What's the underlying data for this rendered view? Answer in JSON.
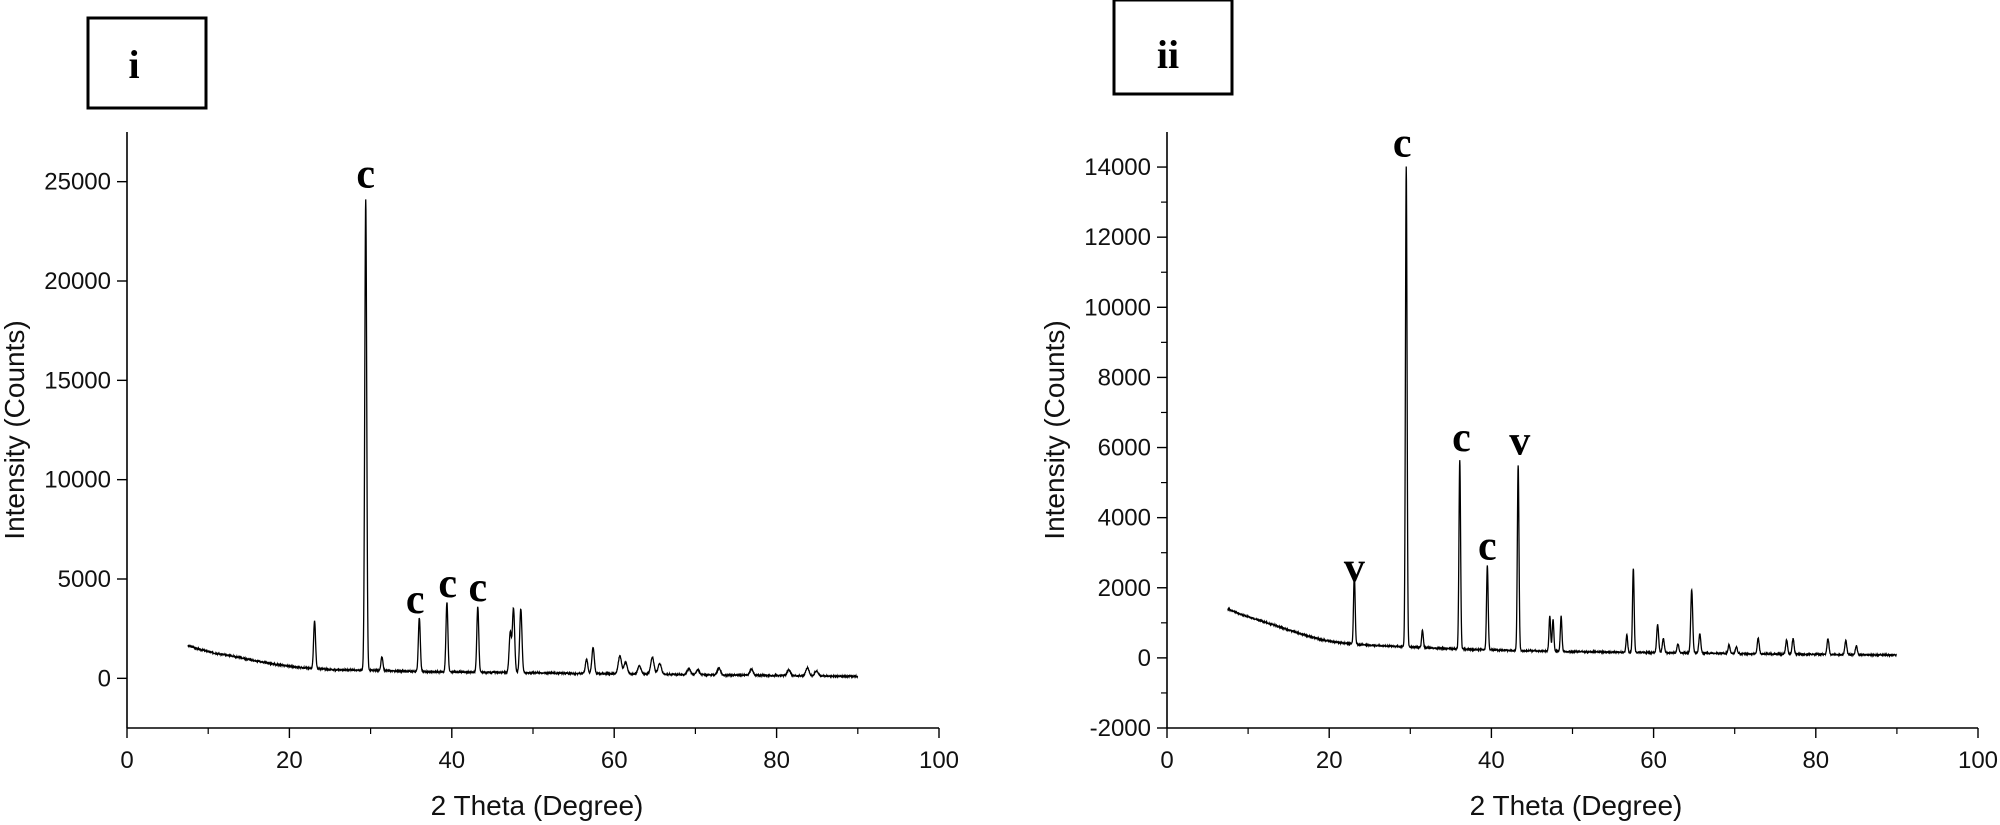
{
  "chart_data": [
    {
      "type": "line",
      "panel_label": "i",
      "xlabel": "2 Theta (Degree)",
      "ylabel": "Intensity (Counts)",
      "xlim": [
        0,
        100
      ],
      "ylim": [
        -2500,
        27500
      ],
      "xticks": [
        0,
        20,
        40,
        60,
        80,
        100
      ],
      "yticks": [
        0,
        5000,
        10000,
        15000,
        20000,
        25000
      ],
      "grid": false,
      "baseline": [
        [
          7.5,
          1650
        ],
        [
          9,
          1450
        ],
        [
          11,
          1250
        ],
        [
          13,
          1120
        ],
        [
          15,
          950
        ],
        [
          18,
          720
        ],
        [
          21,
          560
        ],
        [
          24,
          470
        ],
        [
          26,
          420
        ],
        [
          28,
          420
        ],
        [
          30,
          420
        ],
        [
          32,
          380
        ],
        [
          34,
          360
        ],
        [
          36,
          340
        ],
        [
          38,
          330
        ],
        [
          40,
          320
        ],
        [
          44,
          300
        ],
        [
          47,
          300
        ],
        [
          50,
          280
        ],
        [
          55,
          250
        ],
        [
          60,
          230
        ],
        [
          65,
          210
        ],
        [
          70,
          180
        ],
        [
          75,
          160
        ],
        [
          80,
          140
        ],
        [
          85,
          120
        ],
        [
          90,
          100
        ]
      ],
      "peaks": [
        {
          "x": 23.1,
          "y": 2400,
          "w": 0.12
        },
        {
          "x": 29.4,
          "y": 23700,
          "w": 0.12
        },
        {
          "x": 31.4,
          "y": 700,
          "w": 0.12
        },
        {
          "x": 36.0,
          "y": 2700,
          "w": 0.12
        },
        {
          "x": 39.4,
          "y": 3500,
          "w": 0.12
        },
        {
          "x": 43.2,
          "y": 3300,
          "w": 0.12
        },
        {
          "x": 47.2,
          "y": 2000,
          "w": 0.14
        },
        {
          "x": 47.6,
          "y": 3200,
          "w": 0.14
        },
        {
          "x": 48.5,
          "y": 3200,
          "w": 0.14
        },
        {
          "x": 56.6,
          "y": 700,
          "w": 0.15
        },
        {
          "x": 57.4,
          "y": 1300,
          "w": 0.15
        },
        {
          "x": 60.7,
          "y": 900,
          "w": 0.2
        },
        {
          "x": 61.4,
          "y": 600,
          "w": 0.2
        },
        {
          "x": 63.1,
          "y": 400,
          "w": 0.2
        },
        {
          "x": 64.7,
          "y": 850,
          "w": 0.2
        },
        {
          "x": 65.6,
          "y": 550,
          "w": 0.2
        },
        {
          "x": 69.2,
          "y": 300,
          "w": 0.2
        },
        {
          "x": 70.3,
          "y": 250,
          "w": 0.2
        },
        {
          "x": 72.9,
          "y": 350,
          "w": 0.2
        },
        {
          "x": 76.9,
          "y": 300,
          "w": 0.2
        },
        {
          "x": 81.5,
          "y": 300,
          "w": 0.2
        },
        {
          "x": 83.8,
          "y": 400,
          "w": 0.2
        },
        {
          "x": 84.9,
          "y": 250,
          "w": 0.2
        }
      ],
      "annotations": [
        {
          "text": "c",
          "x": 29.4,
          "y": 24700
        },
        {
          "text": "c",
          "x": 35.5,
          "y": 3300
        },
        {
          "text": "c",
          "x": 39.5,
          "y": 4100
        },
        {
          "text": "c",
          "x": 43.2,
          "y": 3900
        }
      ]
    },
    {
      "type": "line",
      "panel_label": "ii",
      "xlabel": "2 Theta (Degree)",
      "ylabel": "Intensity (Counts)",
      "xlim": [
        0,
        100
      ],
      "ylim": [
        -2000,
        15000
      ],
      "xticks": [
        0,
        20,
        40,
        60,
        80,
        100
      ],
      "yticks": [
        -2000,
        0,
        2000,
        4000,
        6000,
        8000,
        10000,
        12000,
        14000
      ],
      "grid": false,
      "baseline": [
        [
          7.5,
          1400
        ],
        [
          9,
          1250
        ],
        [
          11,
          1100
        ],
        [
          13,
          950
        ],
        [
          15,
          800
        ],
        [
          17,
          650
        ],
        [
          19,
          520
        ],
        [
          21,
          440
        ],
        [
          23,
          390
        ],
        [
          25,
          360
        ],
        [
          27,
          340
        ],
        [
          29,
          320
        ],
        [
          31,
          300
        ],
        [
          33,
          280
        ],
        [
          35,
          260
        ],
        [
          38,
          240
        ],
        [
          40,
          230
        ],
        [
          44,
          200
        ],
        [
          48,
          190
        ],
        [
          52,
          170
        ],
        [
          56,
          160
        ],
        [
          60,
          150
        ],
        [
          65,
          140
        ],
        [
          70,
          120
        ],
        [
          75,
          110
        ],
        [
          80,
          100
        ],
        [
          85,
          90
        ],
        [
          90,
          80
        ]
      ],
      "peaks": [
        {
          "x": 23.1,
          "y": 2000,
          "w": 0.1
        },
        {
          "x": 29.5,
          "y": 13700,
          "w": 0.1
        },
        {
          "x": 31.5,
          "y": 500,
          "w": 0.1
        },
        {
          "x": 36.1,
          "y": 5400,
          "w": 0.1
        },
        {
          "x": 39.5,
          "y": 2400,
          "w": 0.1
        },
        {
          "x": 43.3,
          "y": 5300,
          "w": 0.1
        },
        {
          "x": 47.2,
          "y": 1000,
          "w": 0.1
        },
        {
          "x": 47.6,
          "y": 900,
          "w": 0.1
        },
        {
          "x": 48.6,
          "y": 1000,
          "w": 0.1
        },
        {
          "x": 56.7,
          "y": 500,
          "w": 0.1
        },
        {
          "x": 57.5,
          "y": 2400,
          "w": 0.1
        },
        {
          "x": 60.5,
          "y": 800,
          "w": 0.12
        },
        {
          "x": 61.2,
          "y": 400,
          "w": 0.12
        },
        {
          "x": 63.0,
          "y": 250,
          "w": 0.12
        },
        {
          "x": 64.7,
          "y": 1800,
          "w": 0.12
        },
        {
          "x": 65.7,
          "y": 550,
          "w": 0.12
        },
        {
          "x": 69.3,
          "y": 250,
          "w": 0.12
        },
        {
          "x": 70.2,
          "y": 200,
          "w": 0.12
        },
        {
          "x": 72.9,
          "y": 450,
          "w": 0.12
        },
        {
          "x": 76.4,
          "y": 400,
          "w": 0.12
        },
        {
          "x": 77.2,
          "y": 450,
          "w": 0.12
        },
        {
          "x": 81.5,
          "y": 450,
          "w": 0.12
        },
        {
          "x": 83.7,
          "y": 400,
          "w": 0.12
        },
        {
          "x": 85.0,
          "y": 250,
          "w": 0.12
        }
      ],
      "annotations": [
        {
          "text": "v",
          "x": 23.1,
          "y": 2200
        },
        {
          "text": "c",
          "x": 29.0,
          "y": 14300
        },
        {
          "text": "c",
          "x": 36.3,
          "y": 5900
        },
        {
          "text": "c",
          "x": 39.5,
          "y": 2800
        },
        {
          "text": "v",
          "x": 43.5,
          "y": 5800
        }
      ]
    }
  ]
}
